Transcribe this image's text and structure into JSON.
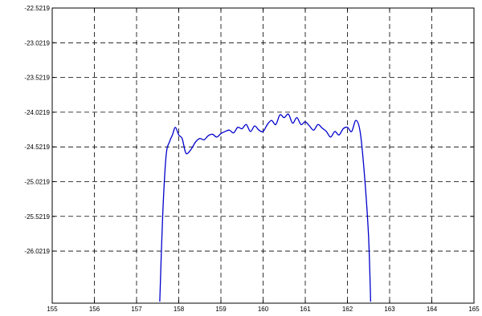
{
  "chart_data": {
    "type": "line",
    "title": "",
    "xlabel": "",
    "ylabel": "",
    "xlim": [
      155,
      165
    ],
    "ylim": [
      -26.7719,
      -22.5219
    ],
    "grid": true,
    "x_ticks": [
      155,
      156,
      157,
      158,
      159,
      160,
      161,
      162,
      163,
      164,
      165
    ],
    "x_tick_labels": [
      "155",
      "156",
      "157",
      "158",
      "159",
      "160",
      "161",
      "162",
      "163",
      "164",
      "165"
    ],
    "y_ticks": [
      -22.5219,
      -23.0219,
      -23.5219,
      -24.0219,
      -24.5219,
      -25.0219,
      -25.5219,
      -26.0219
    ],
    "y_tick_labels": [
      "-22.5219",
      "-23.0219",
      "-23.5219",
      "-24.0219",
      "-24.5219",
      "-25.0219",
      "-25.5219",
      "-26.0219"
    ],
    "colors": {
      "series": "#0000cc",
      "grid": "#000000",
      "axes": "#000000",
      "background": "#ffffff"
    },
    "series": [
      {
        "x": [
          157.55,
          157.62,
          157.7,
          157.78,
          157.85,
          157.92,
          158.0,
          158.08,
          158.15,
          158.2,
          158.3,
          158.4,
          158.5,
          158.6,
          158.7,
          158.8,
          158.9,
          159.0,
          159.1,
          159.2,
          159.3,
          159.4,
          159.5,
          159.6,
          159.7,
          159.8,
          159.9,
          160.0,
          160.1,
          160.2,
          160.3,
          160.4,
          160.5,
          160.6,
          160.7,
          160.8,
          160.9,
          161.0,
          161.1,
          161.2,
          161.3,
          161.4,
          161.5,
          161.6,
          161.7,
          161.8,
          161.9,
          162.0,
          162.1,
          162.2,
          162.3,
          162.4,
          162.5,
          162.55
        ],
        "y": [
          -26.75,
          -25.5,
          -24.65,
          -24.45,
          -24.35,
          -24.24,
          -24.35,
          -24.4,
          -24.58,
          -24.62,
          -24.55,
          -24.45,
          -24.4,
          -24.42,
          -24.36,
          -24.34,
          -24.38,
          -24.33,
          -24.3,
          -24.28,
          -24.32,
          -24.24,
          -24.26,
          -24.2,
          -24.3,
          -24.22,
          -24.28,
          -24.3,
          -24.2,
          -24.14,
          -24.2,
          -24.06,
          -24.1,
          -24.05,
          -24.18,
          -24.1,
          -24.2,
          -24.16,
          -24.22,
          -24.28,
          -24.2,
          -24.25,
          -24.3,
          -24.38,
          -24.3,
          -24.35,
          -24.26,
          -24.24,
          -24.3,
          -24.14,
          -24.3,
          -24.9,
          -25.8,
          -26.75
        ]
      }
    ]
  }
}
